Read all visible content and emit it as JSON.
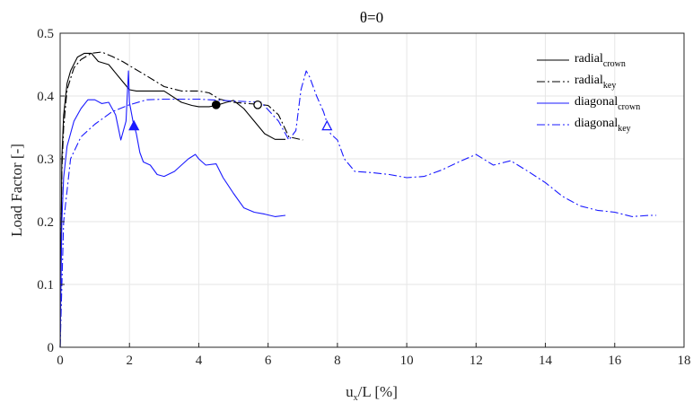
{
  "chart_data": {
    "type": "line",
    "title": "θ=0",
    "xlabel": {
      "main": "u",
      "sub": "x",
      "rest": "/L [%]"
    },
    "ylabel": "Load Factor [-]",
    "xlim": [
      0,
      18
    ],
    "ylim": [
      0,
      0.5
    ],
    "xticks": [
      0,
      2,
      4,
      6,
      8,
      10,
      12,
      14,
      16,
      18
    ],
    "yticks": [
      0,
      0.1,
      0.2,
      0.3,
      0.4,
      0.5
    ],
    "xtick_labels": [
      "0",
      "2",
      "4",
      "6",
      "8",
      "10",
      "12",
      "14",
      "16",
      "18"
    ],
    "ytick_labels": [
      "0",
      "0.1",
      "0.2",
      "0.3",
      "0.4",
      "0.5"
    ],
    "grid": true,
    "legend_position": "top-right",
    "series": [
      {
        "name": "radial",
        "name_sub": "crown",
        "color": "#000000",
        "style": "solid",
        "x": [
          0,
          0.05,
          0.1,
          0.2,
          0.3,
          0.5,
          0.7,
          0.9,
          1.1,
          1.4,
          1.7,
          2.0,
          2.2,
          2.5,
          3.0,
          3.5,
          3.8,
          4.0,
          4.3,
          4.5,
          4.8,
          5.0,
          5.3,
          5.6,
          5.9,
          6.2,
          6.5
        ],
        "y": [
          0,
          0.3,
          0.37,
          0.42,
          0.44,
          0.462,
          0.468,
          0.468,
          0.455,
          0.45,
          0.43,
          0.41,
          0.408,
          0.408,
          0.408,
          0.39,
          0.385,
          0.383,
          0.383,
          0.385,
          0.39,
          0.393,
          0.38,
          0.36,
          0.34,
          0.331,
          0.331
        ]
      },
      {
        "name": "radial",
        "name_sub": "key",
        "color": "#000000",
        "style": "dashdot",
        "x": [
          0,
          0.05,
          0.1,
          0.2,
          0.4,
          0.6,
          0.9,
          1.2,
          1.5,
          1.8,
          2.1,
          2.5,
          3.0,
          3.5,
          4.0,
          4.3,
          4.6,
          5.0,
          5.4,
          5.7,
          6.0,
          6.3,
          6.6,
          7.0
        ],
        "y": [
          0,
          0.28,
          0.35,
          0.41,
          0.445,
          0.458,
          0.468,
          0.47,
          0.463,
          0.455,
          0.445,
          0.432,
          0.415,
          0.408,
          0.408,
          0.405,
          0.395,
          0.39,
          0.388,
          0.387,
          0.385,
          0.37,
          0.335,
          0.33
        ]
      },
      {
        "name": "diagonal",
        "name_sub": "crown",
        "color": "#1a1aff",
        "style": "solid",
        "x": [
          0,
          0.05,
          0.1,
          0.2,
          0.4,
          0.6,
          0.8,
          1.0,
          1.2,
          1.4,
          1.6,
          1.75,
          1.9,
          1.97,
          2.0,
          2.1,
          2.2,
          2.3,
          2.4,
          2.6,
          2.8,
          3.0,
          3.3,
          3.5,
          3.7,
          3.9,
          4.0,
          4.2,
          4.5,
          4.7,
          5.0,
          5.3,
          5.6,
          5.9,
          6.2,
          6.5
        ],
        "y": [
          0,
          0.2,
          0.27,
          0.32,
          0.36,
          0.38,
          0.394,
          0.394,
          0.388,
          0.39,
          0.37,
          0.33,
          0.36,
          0.44,
          0.39,
          0.36,
          0.34,
          0.31,
          0.295,
          0.29,
          0.275,
          0.272,
          0.28,
          0.29,
          0.3,
          0.307,
          0.3,
          0.29,
          0.292,
          0.27,
          0.245,
          0.222,
          0.215,
          0.212,
          0.208,
          0.21
        ]
      },
      {
        "name": "diagonal",
        "name_sub": "key",
        "color": "#1a1aff",
        "style": "dashdot",
        "x": [
          0,
          0.1,
          0.3,
          0.6,
          1.0,
          1.5,
          2.0,
          2.5,
          3.0,
          4.0,
          5.0,
          5.8,
          6.3,
          6.6,
          6.8,
          6.95,
          7.1,
          7.2,
          7.4,
          7.6,
          7.8,
          8.0,
          8.2,
          8.5,
          9.0,
          9.5,
          10.0,
          10.5,
          11.0,
          11.5,
          12.0,
          12.5,
          13.0,
          13.5,
          14.0,
          14.5,
          15.0,
          15.5,
          16.0,
          16.5,
          17.0,
          17.2
        ],
        "y": [
          0,
          0.2,
          0.3,
          0.335,
          0.355,
          0.375,
          0.386,
          0.394,
          0.395,
          0.395,
          0.392,
          0.39,
          0.36,
          0.33,
          0.345,
          0.41,
          0.44,
          0.43,
          0.4,
          0.375,
          0.34,
          0.33,
          0.3,
          0.28,
          0.278,
          0.275,
          0.27,
          0.272,
          0.282,
          0.295,
          0.307,
          0.29,
          0.297,
          0.28,
          0.262,
          0.24,
          0.225,
          0.218,
          0.215,
          0.208,
          0.21,
          0.21
        ]
      }
    ],
    "markers": [
      {
        "series": "radial crown",
        "shape": "circle",
        "fill": "#000000",
        "stroke": "#000000",
        "x": 4.5,
        "y": 0.386
      },
      {
        "series": "radial key",
        "shape": "circle",
        "fill": "#ffffff",
        "stroke": "#000000",
        "x": 5.7,
        "y": 0.386
      },
      {
        "series": "diagonal crown",
        "shape": "triangle",
        "fill": "#1a1aff",
        "stroke": "#1a1aff",
        "x": 2.13,
        "y": 0.352
      },
      {
        "series": "diagonal key",
        "shape": "triangle",
        "fill": "#ffffff",
        "stroke": "#1a1aff",
        "x": 7.7,
        "y": 0.352
      }
    ]
  }
}
